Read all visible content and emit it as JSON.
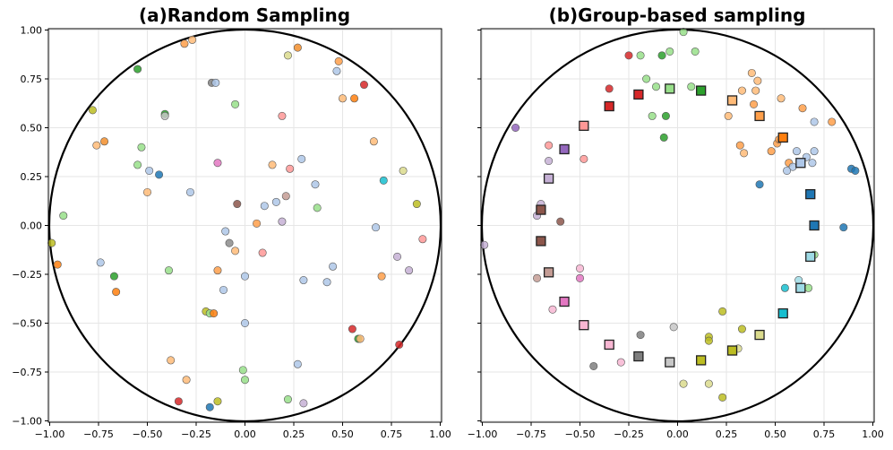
{
  "chart_data": [
    {
      "type": "scatter",
      "title": "(a)Random Sampling",
      "xlim": [
        -1.0,
        1.0
      ],
      "ylim": [
        -1.0,
        1.0
      ],
      "xticks": [
        -1.0,
        -0.75,
        -0.5,
        -0.25,
        0.0,
        0.25,
        0.5,
        0.75,
        1.0
      ],
      "yticks": [
        -1.0,
        -0.75,
        -0.5,
        -0.25,
        0.0,
        0.25,
        0.5,
        0.75,
        1.0
      ],
      "xtick_labels": [
        "−1.00",
        "−0.75",
        "−0.50",
        "−0.25",
        "0.00",
        "0.25",
        "0.50",
        "0.75",
        "1.00"
      ],
      "ytick_labels": [
        "−1.00",
        "−0.75",
        "−0.50",
        "−0.25",
        "0.00",
        "0.25",
        "0.50",
        "0.75",
        "1.00"
      ],
      "grid": true,
      "unit_circle": true,
      "points": [
        {
          "x": -0.31,
          "y": 0.93,
          "c": "#ff9f4a"
        },
        {
          "x": -0.27,
          "y": 0.95,
          "c": "#ffbb78"
        },
        {
          "x": 0.27,
          "y": 0.91,
          "c": "#f28e2b"
        },
        {
          "x": 0.22,
          "y": 0.87,
          "c": "#dbdb8d"
        },
        {
          "x": 0.48,
          "y": 0.84,
          "c": "#ff9f4a"
        },
        {
          "x": 0.47,
          "y": 0.79,
          "c": "#aec7e8"
        },
        {
          "x": -0.55,
          "y": 0.8,
          "c": "#2ca02c"
        },
        {
          "x": -0.17,
          "y": 0.73,
          "c": "#7f7f7f"
        },
        {
          "x": -0.15,
          "y": 0.73,
          "c": "#aec7e8"
        },
        {
          "x": 0.61,
          "y": 0.72,
          "c": "#d62728"
        },
        {
          "x": 0.56,
          "y": 0.65,
          "c": "#ff7f0e"
        },
        {
          "x": 0.5,
          "y": 0.65,
          "c": "#ffbb78"
        },
        {
          "x": -0.05,
          "y": 0.62,
          "c": "#98df8a"
        },
        {
          "x": -0.78,
          "y": 0.59,
          "c": "#bcbd22"
        },
        {
          "x": -0.41,
          "y": 0.57,
          "c": "#2ca02c"
        },
        {
          "x": -0.41,
          "y": 0.56,
          "c": "#c7c7c7"
        },
        {
          "x": 0.19,
          "y": 0.56,
          "c": "#ff9896"
        },
        {
          "x": -0.76,
          "y": 0.41,
          "c": "#ffbb78"
        },
        {
          "x": -0.72,
          "y": 0.43,
          "c": "#f28e2b"
        },
        {
          "x": -0.53,
          "y": 0.4,
          "c": "#98df8a"
        },
        {
          "x": 0.66,
          "y": 0.43,
          "c": "#ffbb78"
        },
        {
          "x": -0.55,
          "y": 0.31,
          "c": "#98df8a"
        },
        {
          "x": -0.49,
          "y": 0.28,
          "c": "#aec7e8"
        },
        {
          "x": -0.44,
          "y": 0.26,
          "c": "#1f77b4"
        },
        {
          "x": -0.14,
          "y": 0.32,
          "c": "#e377c2"
        },
        {
          "x": 0.14,
          "y": 0.31,
          "c": "#ffbb78"
        },
        {
          "x": 0.23,
          "y": 0.29,
          "c": "#ff9896"
        },
        {
          "x": 0.29,
          "y": 0.34,
          "c": "#aec7e8"
        },
        {
          "x": 0.81,
          "y": 0.28,
          "c": "#dbdb8d"
        },
        {
          "x": 0.71,
          "y": 0.23,
          "c": "#17becf"
        },
        {
          "x": -0.5,
          "y": 0.17,
          "c": "#ffbb78"
        },
        {
          "x": -0.28,
          "y": 0.17,
          "c": "#aec7e8"
        },
        {
          "x": 0.36,
          "y": 0.21,
          "c": "#aec7e8"
        },
        {
          "x": 0.21,
          "y": 0.15,
          "c": "#c49c94"
        },
        {
          "x": 0.16,
          "y": 0.12,
          "c": "#aec7e8"
        },
        {
          "x": 0.1,
          "y": 0.1,
          "c": "#aec7e8"
        },
        {
          "x": -0.04,
          "y": 0.11,
          "c": "#8c564b"
        },
        {
          "x": 0.37,
          "y": 0.09,
          "c": "#98df8a"
        },
        {
          "x": 0.88,
          "y": 0.11,
          "c": "#bcbd22"
        },
        {
          "x": -0.93,
          "y": 0.05,
          "c": "#98df8a"
        },
        {
          "x": 0.19,
          "y": 0.02,
          "c": "#c5b0d5"
        },
        {
          "x": 0.06,
          "y": 0.01,
          "c": "#ff9f4a"
        },
        {
          "x": -0.1,
          "y": -0.03,
          "c": "#aec7e8"
        },
        {
          "x": 0.67,
          "y": -0.01,
          "c": "#aec7e8"
        },
        {
          "x": -0.99,
          "y": -0.09,
          "c": "#bcbd22"
        },
        {
          "x": -0.08,
          "y": -0.09,
          "c": "#8c8c8c"
        },
        {
          "x": -0.05,
          "y": -0.13,
          "c": "#ffbb78"
        },
        {
          "x": 0.09,
          "y": -0.14,
          "c": "#ff9896"
        },
        {
          "x": 0.91,
          "y": -0.07,
          "c": "#ff9896"
        },
        {
          "x": -0.96,
          "y": -0.2,
          "c": "#ff7f0e"
        },
        {
          "x": -0.74,
          "y": -0.19,
          "c": "#aec7e8"
        },
        {
          "x": 0.78,
          "y": -0.16,
          "c": "#c5b0d5"
        },
        {
          "x": 0.84,
          "y": -0.23,
          "c": "#c5b0d5"
        },
        {
          "x": -0.39,
          "y": -0.23,
          "c": "#98df8a"
        },
        {
          "x": -0.14,
          "y": -0.23,
          "c": "#ff9f4a"
        },
        {
          "x": 0.45,
          "y": -0.21,
          "c": "#aec7e8"
        },
        {
          "x": -0.67,
          "y": -0.26,
          "c": "#2ca02c"
        },
        {
          "x": 0.0,
          "y": -0.26,
          "c": "#aec7e8"
        },
        {
          "x": 0.3,
          "y": -0.28,
          "c": "#aec7e8"
        },
        {
          "x": 0.42,
          "y": -0.29,
          "c": "#aec7e8"
        },
        {
          "x": 0.7,
          "y": -0.26,
          "c": "#ff9f4a"
        },
        {
          "x": -0.66,
          "y": -0.34,
          "c": "#ff7f0e"
        },
        {
          "x": -0.11,
          "y": -0.33,
          "c": "#aec7e8"
        },
        {
          "x": -0.2,
          "y": -0.44,
          "c": "#bcbd22"
        },
        {
          "x": -0.18,
          "y": -0.45,
          "c": "#98df8a"
        },
        {
          "x": -0.16,
          "y": -0.45,
          "c": "#ff7f0e"
        },
        {
          "x": 0.0,
          "y": -0.5,
          "c": "#aec7e8"
        },
        {
          "x": 0.55,
          "y": -0.53,
          "c": "#d62728"
        },
        {
          "x": 0.58,
          "y": -0.58,
          "c": "#2ca02c"
        },
        {
          "x": 0.59,
          "y": -0.58,
          "c": "#ffbb78"
        },
        {
          "x": 0.79,
          "y": -0.61,
          "c": "#d62728"
        },
        {
          "x": -0.38,
          "y": -0.69,
          "c": "#ffbb78"
        },
        {
          "x": 0.27,
          "y": -0.71,
          "c": "#aec7e8"
        },
        {
          "x": -0.01,
          "y": -0.74,
          "c": "#98df8a"
        },
        {
          "x": -0.3,
          "y": -0.79,
          "c": "#ffbb78"
        },
        {
          "x": 0.0,
          "y": -0.79,
          "c": "#98df8a"
        },
        {
          "x": -0.34,
          "y": -0.9,
          "c": "#d62728"
        },
        {
          "x": -0.14,
          "y": -0.9,
          "c": "#bcbd22"
        },
        {
          "x": 0.22,
          "y": -0.89,
          "c": "#98df8a"
        },
        {
          "x": 0.3,
          "y": -0.91,
          "c": "#c5b0d5"
        },
        {
          "x": -0.18,
          "y": -0.93,
          "c": "#1f77b4"
        }
      ]
    },
    {
      "type": "scatter",
      "title": "(b)Group-based sampling",
      "xlim": [
        -1.0,
        1.0
      ],
      "ylim": [
        -1.0,
        1.0
      ],
      "xticks": [
        -1.0,
        -0.75,
        -0.5,
        -0.25,
        0.0,
        0.25,
        0.5,
        0.75,
        1.0
      ],
      "yticks": [
        -1.0,
        -0.75,
        -0.5,
        -0.25,
        0.0,
        0.25,
        0.5,
        0.75,
        1.0
      ],
      "xtick_labels": [
        "−1.00",
        "−0.75",
        "−0.50",
        "−0.25",
        "0.00",
        "0.25",
        "0.50",
        "0.75",
        "1.00"
      ],
      "grid": true,
      "unit_circle": true,
      "points": [
        {
          "x": 0.03,
          "y": 0.99,
          "c": "#98df8a"
        },
        {
          "x": -0.25,
          "y": 0.87,
          "c": "#d62728"
        },
        {
          "x": -0.19,
          "y": 0.87,
          "c": "#98df8a"
        },
        {
          "x": -0.08,
          "y": 0.87,
          "c": "#2ca02c"
        },
        {
          "x": -0.04,
          "y": 0.89,
          "c": "#98df8a"
        },
        {
          "x": 0.09,
          "y": 0.89,
          "c": "#98df8a"
        },
        {
          "x": 0.38,
          "y": 0.78,
          "c": "#ffbb78"
        },
        {
          "x": -0.16,
          "y": 0.75,
          "c": "#98df8a"
        },
        {
          "x": 0.41,
          "y": 0.74,
          "c": "#ffbb78"
        },
        {
          "x": -0.35,
          "y": 0.7,
          "c": "#d62728"
        },
        {
          "x": -0.11,
          "y": 0.71,
          "c": "#98df8a"
        },
        {
          "x": 0.07,
          "y": 0.71,
          "c": "#98df8a"
        },
        {
          "x": 0.33,
          "y": 0.69,
          "c": "#ffbb78"
        },
        {
          "x": 0.4,
          "y": 0.69,
          "c": "#ffbb78"
        },
        {
          "x": 0.53,
          "y": 0.65,
          "c": "#ffbb78"
        },
        {
          "x": 0.39,
          "y": 0.62,
          "c": "#ff9f4a"
        },
        {
          "x": 0.64,
          "y": 0.6,
          "c": "#ff9f4a"
        },
        {
          "x": -0.13,
          "y": 0.56,
          "c": "#98df8a"
        },
        {
          "x": -0.06,
          "y": 0.56,
          "c": "#2ca02c"
        },
        {
          "x": 0.26,
          "y": 0.56,
          "c": "#ffbb78"
        },
        {
          "x": 0.79,
          "y": 0.53,
          "c": "#ff9f4a"
        },
        {
          "x": 0.7,
          "y": 0.53,
          "c": "#aec7e8"
        },
        {
          "x": -0.83,
          "y": 0.5,
          "c": "#9467bd"
        },
        {
          "x": -0.07,
          "y": 0.45,
          "c": "#2ca02c"
        },
        {
          "x": 0.32,
          "y": 0.41,
          "c": "#ff9f4a"
        },
        {
          "x": 0.34,
          "y": 0.37,
          "c": "#ffbb78"
        },
        {
          "x": 0.48,
          "y": 0.38,
          "c": "#ff9f4a"
        },
        {
          "x": 0.51,
          "y": 0.42,
          "c": "#ff9f4a"
        },
        {
          "x": 0.52,
          "y": 0.44,
          "c": "#ff9f4a"
        },
        {
          "x": 0.61,
          "y": 0.38,
          "c": "#aec7e8"
        },
        {
          "x": 0.66,
          "y": 0.35,
          "c": "#aec7e8"
        },
        {
          "x": 0.7,
          "y": 0.38,
          "c": "#aec7e8"
        },
        {
          "x": -0.66,
          "y": 0.41,
          "c": "#ff9896"
        },
        {
          "x": -0.48,
          "y": 0.34,
          "c": "#ff9896"
        },
        {
          "x": -0.66,
          "y": 0.33,
          "c": "#c5b0d5"
        },
        {
          "x": 0.57,
          "y": 0.32,
          "c": "#ff9f4a"
        },
        {
          "x": 0.59,
          "y": 0.3,
          "c": "#aec7e8"
        },
        {
          "x": 0.69,
          "y": 0.32,
          "c": "#aec7e8"
        },
        {
          "x": 0.56,
          "y": 0.28,
          "c": "#aec7e8"
        },
        {
          "x": 0.89,
          "y": 0.29,
          "c": "#1f77b4"
        },
        {
          "x": 0.91,
          "y": 0.28,
          "c": "#1f77b4"
        },
        {
          "x": 0.42,
          "y": 0.21,
          "c": "#1f77b4"
        },
        {
          "x": -0.7,
          "y": 0.11,
          "c": "#c5b0d5"
        },
        {
          "x": -0.72,
          "y": 0.05,
          "c": "#c5b0d5"
        },
        {
          "x": -0.6,
          "y": 0.02,
          "c": "#8c564b"
        },
        {
          "x": 0.85,
          "y": -0.01,
          "c": "#1f77b4"
        },
        {
          "x": -0.99,
          "y": -0.1,
          "c": "#c5b0d5"
        },
        {
          "x": 0.7,
          "y": -0.15,
          "c": "#98df8a"
        },
        {
          "x": -0.72,
          "y": -0.27,
          "c": "#c49c94"
        },
        {
          "x": -0.5,
          "y": -0.22,
          "c": "#f7b6d2"
        },
        {
          "x": -0.5,
          "y": -0.27,
          "c": "#e377c2"
        },
        {
          "x": 0.62,
          "y": -0.28,
          "c": "#9edae5"
        },
        {
          "x": 0.55,
          "y": -0.32,
          "c": "#17becf"
        },
        {
          "x": 0.67,
          "y": -0.32,
          "c": "#98df8a"
        },
        {
          "x": -0.64,
          "y": -0.43,
          "c": "#f7b6d2"
        },
        {
          "x": 0.23,
          "y": -0.44,
          "c": "#bcbd22"
        },
        {
          "x": -0.02,
          "y": -0.52,
          "c": "#c7c7c7"
        },
        {
          "x": 0.33,
          "y": -0.53,
          "c": "#bcbd22"
        },
        {
          "x": -0.19,
          "y": -0.56,
          "c": "#7f7f7f"
        },
        {
          "x": 0.16,
          "y": -0.57,
          "c": "#bcbd22"
        },
        {
          "x": 0.16,
          "y": -0.59,
          "c": "#bcbd22"
        },
        {
          "x": 0.31,
          "y": -0.63,
          "c": "#dbdb8d"
        },
        {
          "x": -0.29,
          "y": -0.7,
          "c": "#f7b6d2"
        },
        {
          "x": -0.43,
          "y": -0.72,
          "c": "#7f7f7f"
        },
        {
          "x": 0.03,
          "y": -0.81,
          "c": "#dbdb8d"
        },
        {
          "x": 0.16,
          "y": -0.81,
          "c": "#dbdb8d"
        },
        {
          "x": 0.23,
          "y": -0.88,
          "c": "#bcbd22"
        }
      ],
      "representatives": [
        {
          "x": -0.04,
          "y": 0.7,
          "c": "#98df8a"
        },
        {
          "x": 0.12,
          "y": 0.69,
          "c": "#2ca02c"
        },
        {
          "x": -0.2,
          "y": 0.67,
          "c": "#d62728"
        },
        {
          "x": 0.28,
          "y": 0.64,
          "c": "#ffbb78"
        },
        {
          "x": -0.35,
          "y": 0.61,
          "c": "#d62728"
        },
        {
          "x": 0.42,
          "y": 0.56,
          "c": "#ff9f4a"
        },
        {
          "x": -0.48,
          "y": 0.51,
          "c": "#ff9896"
        },
        {
          "x": 0.54,
          "y": 0.45,
          "c": "#ff7f0e"
        },
        {
          "x": -0.58,
          "y": 0.39,
          "c": "#9467bd"
        },
        {
          "x": 0.63,
          "y": 0.32,
          "c": "#aec7e8"
        },
        {
          "x": -0.66,
          "y": 0.24,
          "c": "#c5b0d5"
        },
        {
          "x": 0.68,
          "y": 0.16,
          "c": "#1f77b4"
        },
        {
          "x": -0.7,
          "y": 0.08,
          "c": "#8c564b"
        },
        {
          "x": 0.7,
          "y": 0.0,
          "c": "#1f77b4"
        },
        {
          "x": -0.7,
          "y": -0.08,
          "c": "#8c564b"
        },
        {
          "x": 0.68,
          "y": -0.16,
          "c": "#9edae5"
        },
        {
          "x": -0.66,
          "y": -0.24,
          "c": "#c49c94"
        },
        {
          "x": 0.63,
          "y": -0.32,
          "c": "#9edae5"
        },
        {
          "x": -0.58,
          "y": -0.39,
          "c": "#e377c2"
        },
        {
          "x": 0.54,
          "y": -0.45,
          "c": "#17becf"
        },
        {
          "x": -0.48,
          "y": -0.51,
          "c": "#f7b6d2"
        },
        {
          "x": 0.42,
          "y": -0.56,
          "c": "#dbdb8d"
        },
        {
          "x": -0.35,
          "y": -0.61,
          "c": "#f7b6d2"
        },
        {
          "x": 0.28,
          "y": -0.64,
          "c": "#bcbd22"
        },
        {
          "x": -0.2,
          "y": -0.67,
          "c": "#7f7f7f"
        },
        {
          "x": 0.12,
          "y": -0.69,
          "c": "#bcbd22"
        },
        {
          "x": -0.04,
          "y": -0.7,
          "c": "#c7c7c7"
        }
      ]
    }
  ]
}
